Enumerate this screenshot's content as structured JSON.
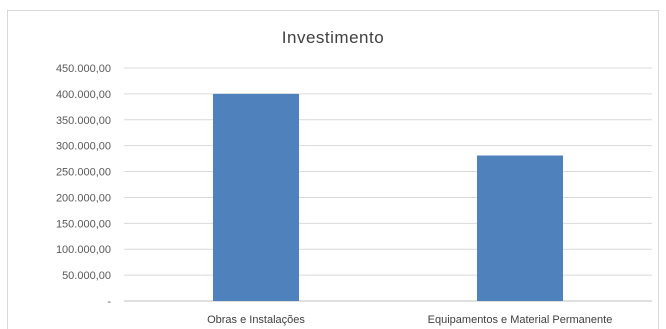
{
  "chart_data": {
    "type": "bar",
    "title": "Investimento",
    "categories": [
      "Obras e Instalações",
      "Equipamentos e Material Permanente"
    ],
    "values": [
      400000,
      281000
    ],
    "ylim": [
      0,
      450000
    ],
    "yticks": [
      {
        "value": 0,
        "label": "-"
      },
      {
        "value": 50000,
        "label": "50.000,00"
      },
      {
        "value": 100000,
        "label": "100.000,00"
      },
      {
        "value": 150000,
        "label": "150.000,00"
      },
      {
        "value": 200000,
        "label": "200.000,00"
      },
      {
        "value": 250000,
        "label": "250.000,00"
      },
      {
        "value": 300000,
        "label": "300.000,00"
      },
      {
        "value": 350000,
        "label": "350.000,00"
      },
      {
        "value": 400000,
        "label": "400.000,00"
      },
      {
        "value": 450000,
        "label": "450.000,00"
      }
    ],
    "bar_color": "#4f81bd",
    "grid": true,
    "legend": "none"
  }
}
